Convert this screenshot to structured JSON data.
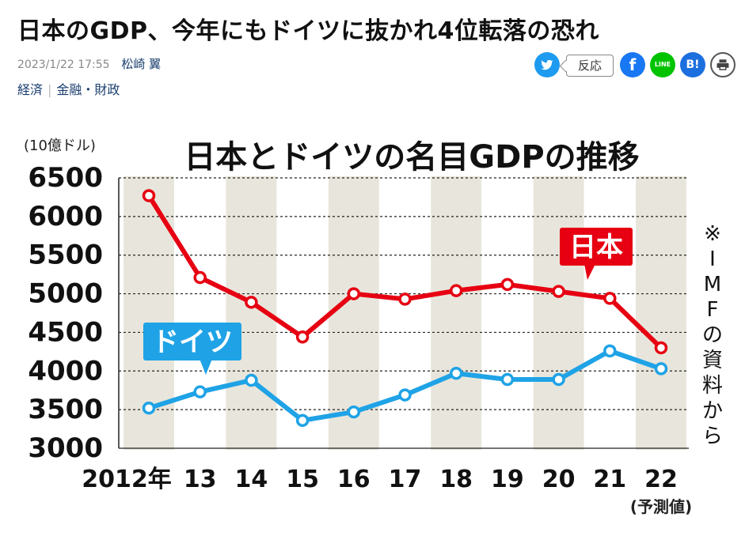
{
  "article": {
    "headline": "日本のGDP、今年にもドイツに抜かれ4位転落の恐れ",
    "date": "2023/1/22 17:55",
    "author": "松崎 翼",
    "categories": [
      "経済",
      "金融・財政"
    ]
  },
  "share": {
    "twitter_icon": "twitter-bird-icon",
    "reaction_label": "反応",
    "facebook_icon": "facebook-icon",
    "line_label": "LINE",
    "hatena_label": "B!",
    "print_icon": "printer-icon"
  },
  "chart_data": {
    "type": "line",
    "title": "日本とドイツの名目GDPの推移",
    "unit_label": "(10億ドル)",
    "source_note": "※IMFの資料から",
    "x": [
      "2012年",
      "13",
      "14",
      "15",
      "16",
      "17",
      "18",
      "19",
      "20",
      "21",
      "22"
    ],
    "forecast_note": "(予測値)",
    "ylim": [
      3000,
      6500
    ],
    "yticks": [
      3000,
      3500,
      4000,
      4500,
      5000,
      5500,
      6000,
      6500
    ],
    "series": [
      {
        "name": "日本",
        "color": "#e60012",
        "values": [
          6270,
          5210,
          4890,
          4440,
          5000,
          4930,
          5040,
          5120,
          5030,
          4940,
          4300
        ]
      },
      {
        "name": "ドイツ",
        "color": "#1fa3e6",
        "values": [
          3520,
          3730,
          3880,
          3360,
          3470,
          3690,
          3970,
          3890,
          3890,
          4260,
          4030
        ]
      }
    ]
  }
}
